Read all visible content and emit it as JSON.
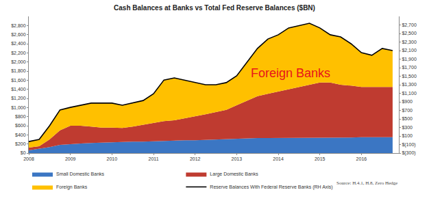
{
  "chart_data": {
    "type": "area",
    "title": "Cash Balances at Banks vs Total Fed Reserve Balances ($BN)",
    "stacked": true,
    "grid": false,
    "legend": "bottom",
    "x": [
      2008,
      2008.25,
      2008.5,
      2008.75,
      2009,
      2009.25,
      2009.5,
      2009.75,
      2010,
      2010.25,
      2010.5,
      2010.75,
      2011,
      2011.25,
      2011.5,
      2011.75,
      2012,
      2012.25,
      2012.5,
      2012.75,
      2013,
      2013.25,
      2013.5,
      2013.75,
      2014,
      2014.25,
      2014.5,
      2014.75,
      2015,
      2015.25,
      2015.5,
      2015.75,
      2016,
      2016.25,
      2016.5,
      2016.75
    ],
    "xlim": [
      2008,
      2016.9
    ],
    "xticks": [
      2008,
      2009,
      2010,
      2011,
      2012,
      2013,
      2014,
      2015,
      2016
    ],
    "ylim": [
      0,
      3000
    ],
    "yticks": [
      {
        "value": 0,
        "label": "$0"
      },
      {
        "value": 200,
        "label": "$200"
      },
      {
        "value": 400,
        "label": "$400"
      },
      {
        "value": 600,
        "label": "$600"
      },
      {
        "value": 800,
        "label": "$800"
      },
      {
        "value": 1000,
        "label": "$1,000"
      },
      {
        "value": 1200,
        "label": "$1,200"
      },
      {
        "value": 1400,
        "label": "$1,400"
      },
      {
        "value": 1600,
        "label": "$1,600"
      },
      {
        "value": 1800,
        "label": "$1,800"
      },
      {
        "value": 2000,
        "label": "$2,000"
      },
      {
        "value": 2200,
        "label": "$2,200"
      },
      {
        "value": 2400,
        "label": "$2,400"
      },
      {
        "value": 2600,
        "label": "$2,600"
      },
      {
        "value": 2800,
        "label": "$2,800"
      }
    ],
    "y2lim": [
      -300,
      2900
    ],
    "y2ticks": [
      {
        "value": -300,
        "label": "$(300)"
      },
      {
        "value": -100,
        "label": "$(100)"
      },
      {
        "value": 100,
        "label": "$100"
      },
      {
        "value": 300,
        "label": "$300"
      },
      {
        "value": 500,
        "label": "$500"
      },
      {
        "value": 700,
        "label": "$700"
      },
      {
        "value": 900,
        "label": "$900"
      },
      {
        "value": 1100,
        "label": "$1,100"
      },
      {
        "value": 1300,
        "label": "$1,300"
      },
      {
        "value": 1500,
        "label": "$1,500"
      },
      {
        "value": 1700,
        "label": "$1,700"
      },
      {
        "value": 1900,
        "label": "$1,900"
      },
      {
        "value": 2100,
        "label": "$2,100"
      },
      {
        "value": 2300,
        "label": "$2,300"
      },
      {
        "value": 2500,
        "label": "$2,500"
      },
      {
        "value": 2700,
        "label": "$2,700"
      }
    ],
    "series": [
      {
        "name": "Small Domestic Banks",
        "type": "area",
        "color": "#3b76c3",
        "values": [
          60,
          90,
          130,
          180,
          200,
          210,
          220,
          230,
          240,
          250,
          250,
          250,
          260,
          270,
          270,
          280,
          280,
          290,
          300,
          300,
          310,
          320,
          330,
          330,
          330,
          330,
          340,
          340,
          340,
          340,
          340,
          340,
          350,
          350,
          350,
          350
        ]
      },
      {
        "name": "Large Domestic Banks",
        "type": "area",
        "color": "#bf3b30",
        "values": [
          60,
          60,
          170,
          320,
          400,
          390,
          360,
          330,
          320,
          300,
          330,
          370,
          390,
          430,
          450,
          480,
          520,
          560,
          600,
          650,
          740,
          830,
          920,
          970,
          1020,
          1070,
          1110,
          1160,
          1210,
          1210,
          1160,
          1140,
          1100,
          1100,
          1100,
          1100
        ]
      },
      {
        "name": "Foreign Banks",
        "type": "area",
        "color": "#ffc000",
        "values": [
          130,
          150,
          300,
          450,
          400,
          450,
          520,
          540,
          540,
          500,
          520,
          530,
          650,
          900,
          930,
          840,
          750,
          650,
          600,
          600,
          650,
          850,
          1050,
          1200,
          1250,
          1350,
          1350,
          1350,
          1200,
          1050,
          1050,
          920,
          750,
          700,
          850,
          800
        ]
      },
      {
        "name": "Reserve Balances With Federal Reserve Banks (RH Axis)",
        "type": "line",
        "axis": "y2",
        "color": "#000000",
        "values": [
          -30,
          20,
          340,
          710,
          770,
          820,
          870,
          870,
          870,
          820,
          870,
          930,
          1090,
          1410,
          1460,
          1410,
          1350,
          1300,
          1300,
          1350,
          1510,
          1830,
          2150,
          2370,
          2470,
          2630,
          2690,
          2740,
          2630,
          2470,
          2420,
          2260,
          2050,
          1990,
          2150,
          2100
        ]
      }
    ],
    "annotations": [
      {
        "text": "Foreign Banks",
        "x": 2014.3,
        "y": 1750,
        "color": "#e8141b"
      }
    ],
    "source": "Source: H.4.1, H.8, Zero Hedge"
  }
}
